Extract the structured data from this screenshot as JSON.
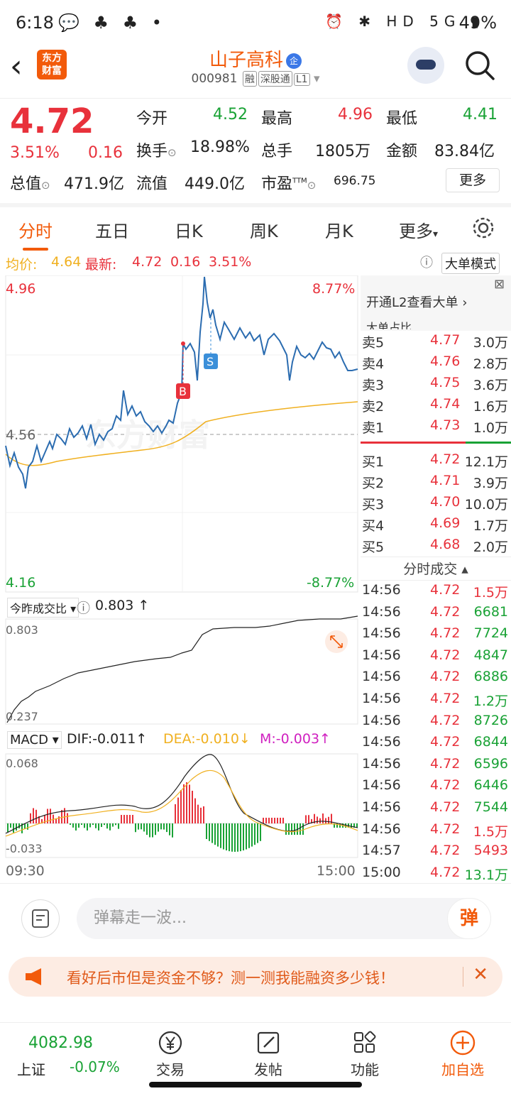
{
  "status_bar": {
    "time": "6:18",
    "network": "HD 5G",
    "battery": "49%"
  },
  "header": {
    "logo_line1": "东方",
    "logo_line2": "财富",
    "stock_name": "山子高科",
    "enterprise_badge": "企",
    "code": "000981",
    "tags": [
      "融",
      "深股通",
      "L1"
    ]
  },
  "quote": {
    "price": "4.72",
    "change_pct": "3.51%",
    "change": "0.16",
    "open_label": "今开",
    "open": "4.52",
    "high_label": "最高",
    "high": "4.96",
    "low_label": "最低",
    "low": "4.41",
    "turnover_label": "换手",
    "turnover": "18.98%",
    "volume_label": "总手",
    "volume": "1805万",
    "amount_label": "金额",
    "amount": "83.84亿",
    "mktcap_label": "总值",
    "mktcap": "471.9亿",
    "float_label": "流值",
    "float": "449.0亿",
    "pe_label": "市盈",
    "pe_sup": "TTM",
    "pe": "696.75",
    "more_button": "更多"
  },
  "tabs": [
    "分时",
    "五日",
    "日K",
    "周K",
    "月K",
    "更多"
  ],
  "avg_bar": {
    "avg_label": "均价:",
    "avg": "4.64",
    "latest_label": "最新:",
    "latest": "4.72",
    "change": "0.16",
    "pct": "3.51%",
    "mode_button": "大单模式"
  },
  "chart": {
    "price_top": "4.96",
    "price_mid": "4.56",
    "price_bottom": "4.16",
    "pct_top": "8.77%",
    "pct_bottom": "-8.77%",
    "buy_marker": "B",
    "sell_marker": "S",
    "ratio_selector": "今昨成交比",
    "ratio_value": "0.803",
    "ratio_top": "0.803",
    "ratio_bottom": "0.237",
    "macd_selector": "MACD",
    "dif": "DIF:-0.011",
    "dea": "DEA:-0.010",
    "m": "M:-0.003",
    "macd_top": "0.068",
    "macd_bottom": "-0.033",
    "time_start": "09:30",
    "time_end": "15:00",
    "watermark": "东方财富"
  },
  "order_book": {
    "l2_link": "开通L2查看大单",
    "big_ratio": "大单占比",
    "asks": [
      {
        "label": "卖5",
        "price": "4.77",
        "vol": "3.0万"
      },
      {
        "label": "卖4",
        "price": "4.76",
        "vol": "2.8万"
      },
      {
        "label": "卖3",
        "price": "4.75",
        "vol": "3.6万"
      },
      {
        "label": "卖2",
        "price": "4.74",
        "vol": "1.6万"
      },
      {
        "label": "卖1",
        "price": "4.73",
        "vol": "1.0万"
      }
    ],
    "bids": [
      {
        "label": "买1",
        "price": "4.72",
        "vol": "12.1万"
      },
      {
        "label": "买2",
        "price": "4.71",
        "vol": "3.9万"
      },
      {
        "label": "买3",
        "price": "4.70",
        "vol": "10.0万"
      },
      {
        "label": "买4",
        "price": "4.69",
        "vol": "1.7万"
      },
      {
        "label": "买5",
        "price": "4.68",
        "vol": "2.0万"
      }
    ],
    "trades_title": "分时成交",
    "trades": [
      {
        "t": "14:56",
        "p": "4.72",
        "v": "1.5万",
        "c": "red"
      },
      {
        "t": "14:56",
        "p": "4.72",
        "v": "6681",
        "c": "green"
      },
      {
        "t": "14:56",
        "p": "4.72",
        "v": "7724",
        "c": "green"
      },
      {
        "t": "14:56",
        "p": "4.72",
        "v": "4847",
        "c": "green"
      },
      {
        "t": "14:56",
        "p": "4.72",
        "v": "6886",
        "c": "green"
      },
      {
        "t": "14:56",
        "p": "4.72",
        "v": "1.2万",
        "c": "green"
      },
      {
        "t": "14:56",
        "p": "4.72",
        "v": "8726",
        "c": "green"
      },
      {
        "t": "14:56",
        "p": "4.72",
        "v": "6844",
        "c": "green"
      },
      {
        "t": "14:56",
        "p": "4.72",
        "v": "6596",
        "c": "green"
      },
      {
        "t": "14:56",
        "p": "4.72",
        "v": "6446",
        "c": "green"
      },
      {
        "t": "14:56",
        "p": "4.72",
        "v": "7544",
        "c": "green"
      },
      {
        "t": "14:56",
        "p": "4.72",
        "v": "1.5万",
        "c": "red"
      },
      {
        "t": "14:57",
        "p": "4.72",
        "v": "5493",
        "c": "red"
      },
      {
        "t": "15:00",
        "p": "4.72",
        "v": "13.1万",
        "c": "green"
      }
    ]
  },
  "danmu": {
    "placeholder": "弹幕走一波...",
    "button": "弹"
  },
  "promo": {
    "text": "看好后市但是资金不够？测一测我能融资多少钱！"
  },
  "bottom_nav": {
    "index_value": "4082.98",
    "index_name": "上证",
    "index_change": "-0.07%",
    "items": [
      "交易",
      "发帖",
      "功能",
      "加自选"
    ]
  },
  "colors": {
    "accent": "#f25a0a",
    "up": "#e8313b",
    "down": "#19a235",
    "price_line": "#2b6cb0",
    "avg_line": "#f0b020"
  }
}
